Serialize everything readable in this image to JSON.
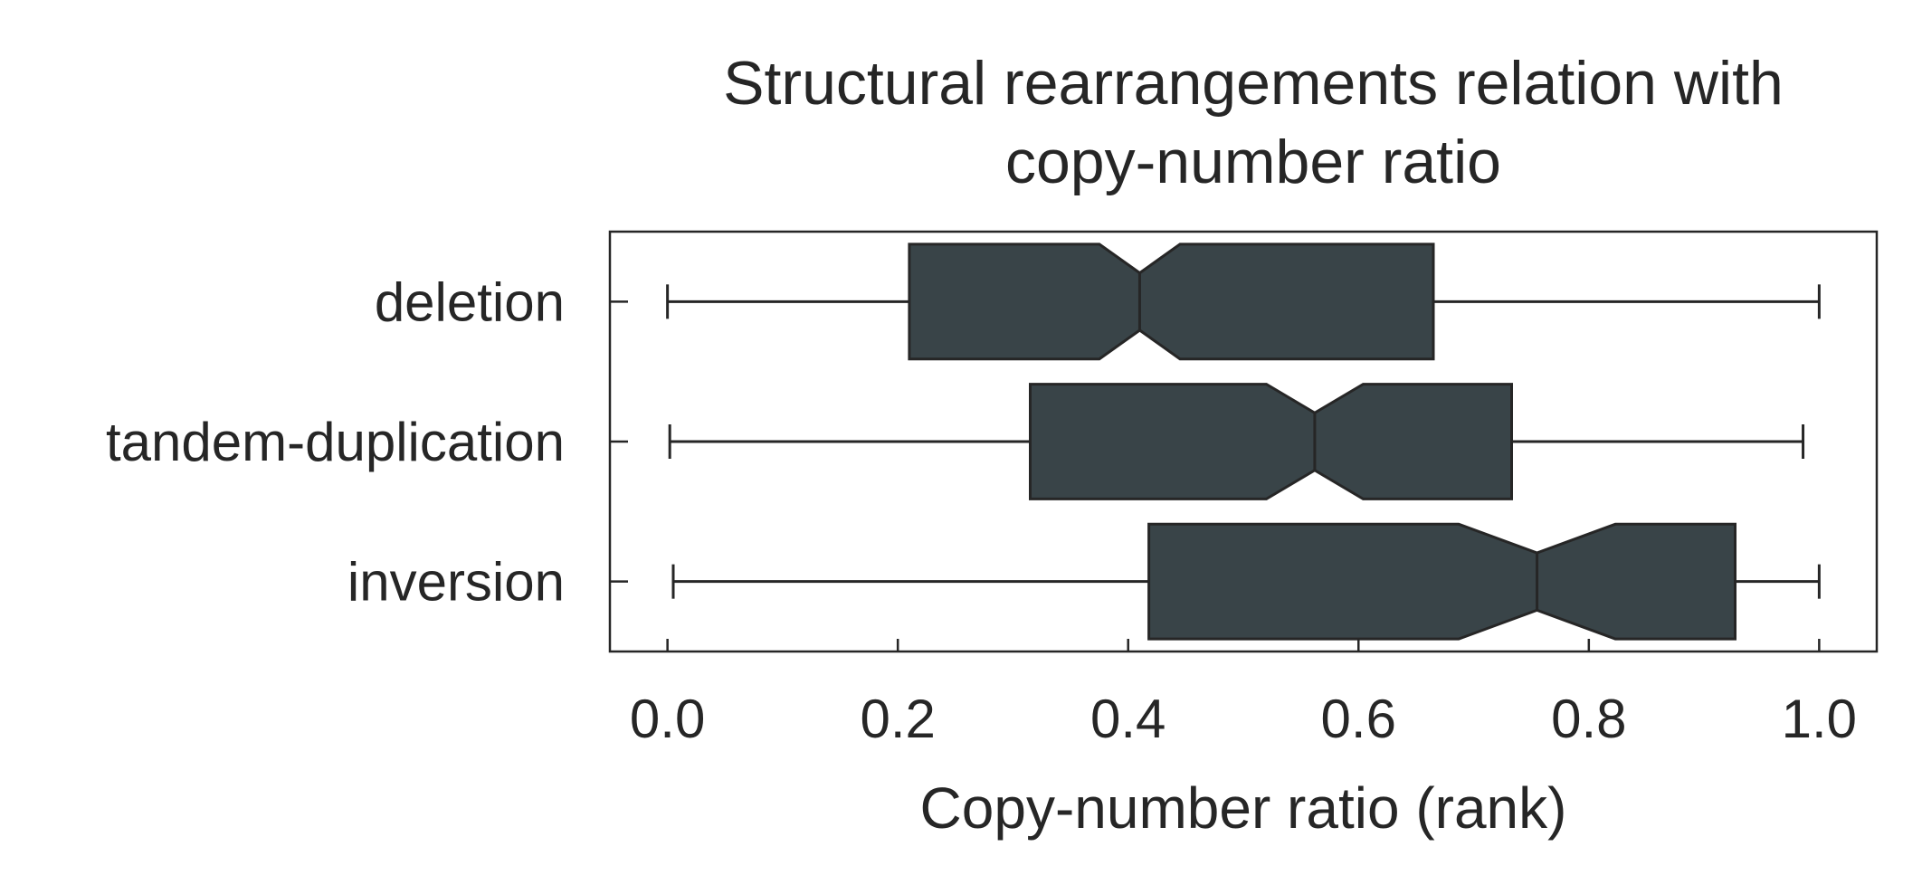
{
  "chart_data": {
    "type": "box",
    "orientation": "horizontal",
    "notched": true,
    "title": [
      "Structural rearrangements relation with",
      "copy-number ratio"
    ],
    "xlabel": "Copy-number ratio (rank)",
    "ylabel": "",
    "xlim": [
      -0.05,
      1.05
    ],
    "xticks": [
      0.0,
      0.2,
      0.4,
      0.6,
      0.8,
      1.0
    ],
    "xtick_labels": [
      "0.0",
      "0.2",
      "0.4",
      "0.6",
      "0.8",
      "1.0"
    ],
    "grid": false,
    "box_color": "#394448",
    "edge_color": "#262626",
    "categories": [
      "deletion",
      "tandem-duplication",
      "inversion"
    ],
    "series": [
      {
        "category": "deletion",
        "whisker_low": 0.0,
        "q1": 0.21,
        "notch_low": 0.375,
        "median": 0.41,
        "notch_high": 0.445,
        "q3": 0.665,
        "whisker_high": 1.0
      },
      {
        "category": "tandem-duplication",
        "whisker_low": 0.002,
        "q1": 0.315,
        "notch_low": 0.52,
        "median": 0.562,
        "notch_high": 0.604,
        "q3": 0.733,
        "whisker_high": 0.986
      },
      {
        "category": "inversion",
        "whisker_low": 0.005,
        "q1": 0.418,
        "notch_low": 0.687,
        "median": 0.755,
        "notch_high": 0.823,
        "q3": 0.927,
        "whisker_high": 1.0
      }
    ]
  }
}
